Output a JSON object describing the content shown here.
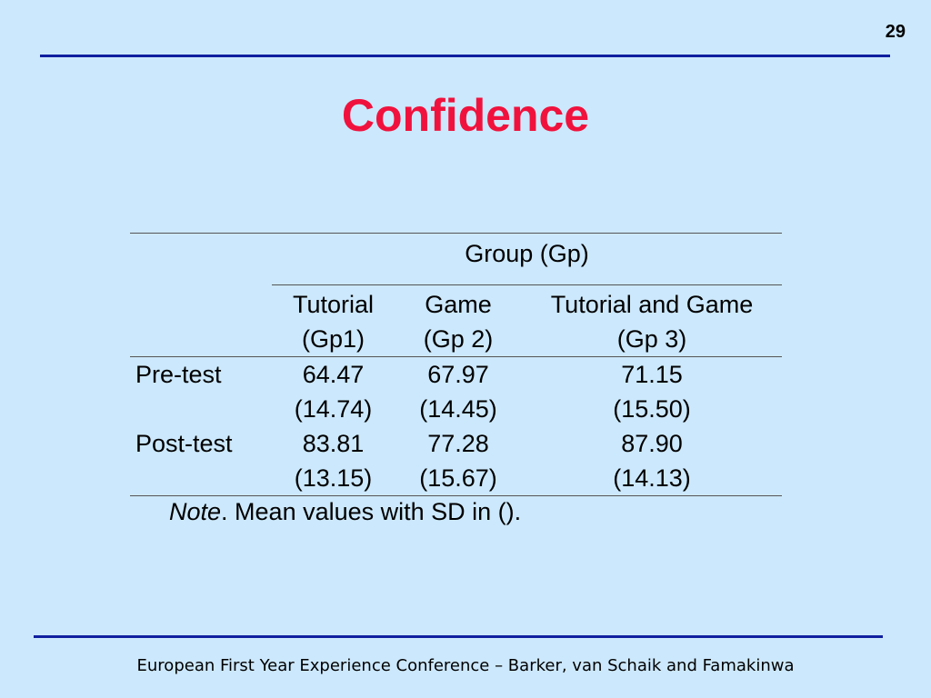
{
  "slide_number": "29",
  "title": "Confidence",
  "table": {
    "group_header": "Group (Gp)",
    "columns": [
      {
        "line1": "Tutorial",
        "line2": "(Gp1)"
      },
      {
        "line1": "Game",
        "line2": "(Gp 2)"
      },
      {
        "line1": "Tutorial and Game",
        "line2": "(Gp 3)"
      }
    ],
    "rows": [
      {
        "label": "Pre-test",
        "means": [
          "64.47",
          "67.97",
          "71.15"
        ],
        "sds": [
          "(14.74)",
          "(14.45)",
          "(15.50)"
        ]
      },
      {
        "label": "Post-test",
        "means": [
          "83.81",
          "77.28",
          "87.90"
        ],
        "sds": [
          "(13.15)",
          "(15.67)",
          "(14.13)"
        ]
      }
    ]
  },
  "note": {
    "label": "Note",
    "text": ". Mean values with SD in ()."
  },
  "footer": "European First Year Experience Conference – Barker, van Schaik and Famakinwa"
}
